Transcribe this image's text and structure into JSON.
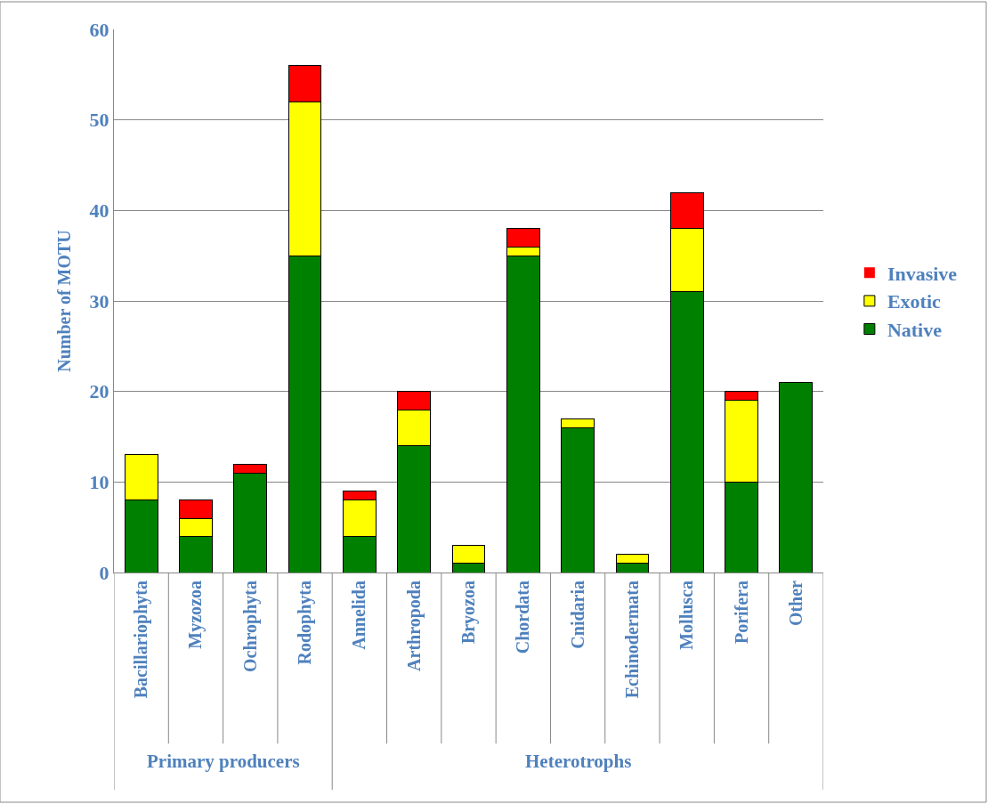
{
  "chart_data": {
    "type": "bar",
    "stacked": true,
    "ylabel": "Number of MOTU",
    "categories": [
      "Bacillariophyta",
      "Myzozoa",
      "Ochrophyta",
      "Rodophyta",
      "Annelida",
      "Arthropoda",
      "Bryozoa",
      "Chordata",
      "Cnidaria",
      "Echinodermata",
      "Mollusca",
      "Porifera",
      "Other"
    ],
    "series": [
      {
        "name": "Native",
        "color": "#008000",
        "values": [
          8,
          4,
          11,
          35,
          4,
          14,
          1,
          35,
          16,
          1,
          31,
          10,
          21
        ]
      },
      {
        "name": "Exotic",
        "color": "#ffff00",
        "values": [
          5,
          2,
          0,
          17,
          4,
          4,
          2,
          1,
          1,
          1,
          7,
          9,
          0
        ]
      },
      {
        "name": "Invasive",
        "color": "#ff0000",
        "values": [
          0,
          2,
          1,
          4,
          1,
          2,
          0,
          2,
          0,
          0,
          4,
          1,
          0
        ]
      }
    ],
    "ylim": [
      0,
      60
    ],
    "yticks": [
      0,
      10,
      20,
      30,
      40,
      50,
      60
    ],
    "grid": "y",
    "legend": "right",
    "annotations": [
      "Primary producers",
      "Heterotrophs"
    ]
  }
}
